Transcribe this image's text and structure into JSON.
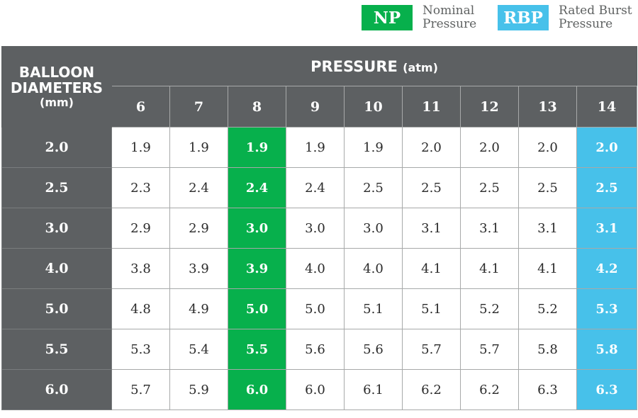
{
  "colors": {
    "header_bg": "#5d6062",
    "np": "#07b04c",
    "rbp": "#47c1ea",
    "grid_line": "#a7a9a9"
  },
  "legend": {
    "np": {
      "code": "NP",
      "line1": "Nominal",
      "line2": "Pressure"
    },
    "rbp": {
      "code": "RBP",
      "line1": "Rated Burst",
      "line2": "Pressure"
    }
  },
  "header": {
    "row_title_line1": "BALLOON",
    "row_title_line2": "DIAMETERS",
    "row_title_unit": "(mm)",
    "pressure_title": "PRESSURE",
    "pressure_unit": "(atm)"
  },
  "chart_data": {
    "type": "table",
    "np_pressure": "8",
    "rbp_pressure": "14",
    "columns": [
      "6",
      "7",
      "8",
      "9",
      "10",
      "11",
      "12",
      "13",
      "14"
    ],
    "rows": [
      {
        "diameter": "2.0",
        "values": [
          "1.9",
          "1.9",
          "1.9",
          "1.9",
          "1.9",
          "2.0",
          "2.0",
          "2.0",
          "2.0"
        ]
      },
      {
        "diameter": "2.5",
        "values": [
          "2.3",
          "2.4",
          "2.4",
          "2.4",
          "2.5",
          "2.5",
          "2.5",
          "2.5",
          "2.5"
        ]
      },
      {
        "diameter": "3.0",
        "values": [
          "2.9",
          "2.9",
          "3.0",
          "3.0",
          "3.0",
          "3.1",
          "3.1",
          "3.1",
          "3.1"
        ]
      },
      {
        "diameter": "4.0",
        "values": [
          "3.8",
          "3.9",
          "3.9",
          "4.0",
          "4.0",
          "4.1",
          "4.1",
          "4.1",
          "4.2"
        ]
      },
      {
        "diameter": "5.0",
        "values": [
          "4.8",
          "4.9",
          "5.0",
          "5.0",
          "5.1",
          "5.1",
          "5.2",
          "5.2",
          "5.3"
        ]
      },
      {
        "diameter": "5.5",
        "values": [
          "5.3",
          "5.4",
          "5.5",
          "5.6",
          "5.6",
          "5.7",
          "5.7",
          "5.8",
          "5.8"
        ]
      },
      {
        "diameter": "6.0",
        "values": [
          "5.7",
          "5.9",
          "6.0",
          "6.0",
          "6.1",
          "6.2",
          "6.2",
          "6.3",
          "6.3"
        ]
      }
    ]
  }
}
